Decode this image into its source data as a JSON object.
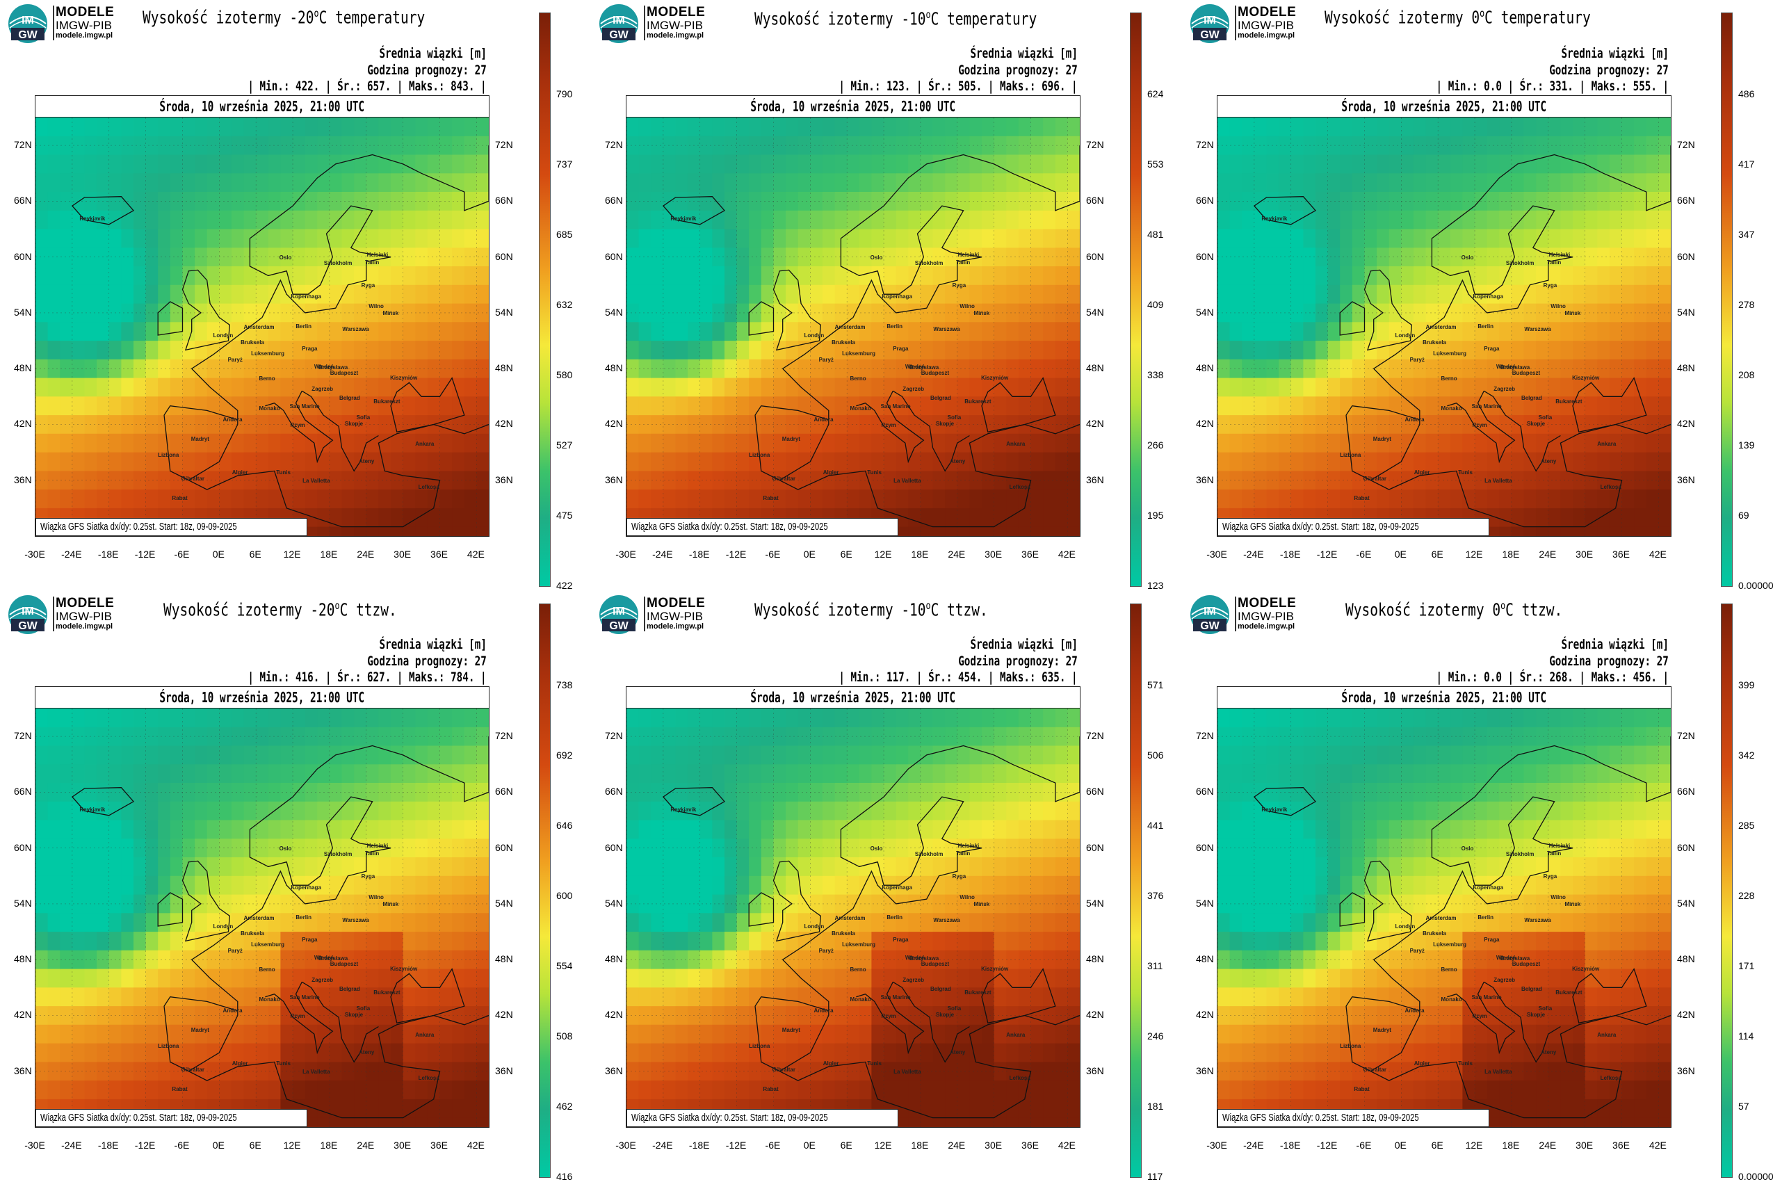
{
  "brand": {
    "line1": "MODELE",
    "line2": "IMGW-PIB",
    "line3": "modele.imgw.pl",
    "logo_text_top": "IM",
    "logo_text_bottom": "GW"
  },
  "common": {
    "date": "Środa, 10 września 2025, 21:00 UTC",
    "avg_label": "Średnia wiązki [m]",
    "forecast_hour": "Godzina prognozy: 27",
    "footnote": "Wiązka GFS Siatka dx/dy: 0.25st. Start: 18z, 09-09-2025",
    "lat_labels": [
      "72N",
      "66N",
      "60N",
      "54N",
      "48N",
      "42N",
      "36N"
    ],
    "lon_labels": [
      "-30E",
      "-24E",
      "-18E",
      "-12E",
      "-6E",
      "0E",
      "6E",
      "12E",
      "18E",
      "24E",
      "30E",
      "36E",
      "42E"
    ],
    "cities": [
      "Oslo",
      "Sztokholm",
      "Helsinki",
      "Tallin",
      "Ryga",
      "Kopenhaga",
      "Wilno",
      "Mińsk",
      "Amsterdam",
      "Berlin",
      "Warszawa",
      "Londyn",
      "Bruksela",
      "Luksemburg",
      "Paryż",
      "Praga",
      "Wiedeń",
      "Bratysława",
      "Budapeszt",
      "Kiszyniów",
      "Berno",
      "Zagrzeb",
      "Belgrad",
      "Bukareszt",
      "Sofia",
      "San Marino",
      "Rzym",
      "Andora",
      "Madryt",
      "Lizbona",
      "Ateny",
      "Ankara",
      "Algier",
      "Tunis",
      "Gibraltar",
      "Rabat",
      "La Valletta",
      "Lefkoşa",
      "Reykjavik",
      "Monako",
      "Skopje"
    ],
    "colors": {
      "low": "#00c9a4",
      "green": "#3cc26a",
      "yellow": "#f5e93a",
      "orange": "#f0a020",
      "red": "#d44a10",
      "dark": "#7a1f08"
    }
  },
  "panels": [
    {
      "title": "Wysokość izotermy -20",
      "title_sup": "o",
      "title_rest": "C temperatury",
      "min": "422.",
      "avg": "657.",
      "max": "843.",
      "stats_text": "| Min.:   422. | Śr.:   657. | Maks.:   843. |",
      "cbar_ticks": [
        "790",
        "737",
        "685",
        "632",
        "580",
        "527",
        "475",
        "422"
      ]
    },
    {
      "title": "Wysokość izotermy -10",
      "title_sup": "o",
      "title_rest": "C temperatury",
      "min": "123.",
      "avg": "505.",
      "max": "696.",
      "stats_text": "| Min.:   123. | Śr.:   505. | Maks.:   696. |",
      "cbar_ticks": [
        "624",
        "553",
        "481",
        "409",
        "338",
        "266",
        "195",
        "123"
      ]
    },
    {
      "title": "Wysokość izotermy 0",
      "title_sup": "o",
      "title_rest": "C temperatury",
      "min": "0.0",
      "avg": "331.",
      "max": "555.",
      "stats_text": "| Min.:    0.0 | Śr.:   331. | Maks.:   555. |",
      "cbar_ticks": [
        "486",
        "417",
        "347",
        "278",
        "208",
        "139",
        "69",
        "0.00000"
      ]
    },
    {
      "title": "Wysokość izotermy -20",
      "title_sup": "o",
      "title_rest": "C ttzw.",
      "min": "416.",
      "avg": "627.",
      "max": "784.",
      "stats_text": "| Min.:   416. | Śr.:   627. | Maks.:   784. |",
      "cbar_ticks": [
        "738",
        "692",
        "646",
        "600",
        "554",
        "508",
        "462",
        "416"
      ]
    },
    {
      "title": "Wysokość izotermy -10",
      "title_sup": "o",
      "title_rest": "C ttzw.",
      "min": "117.",
      "avg": "454.",
      "max": "635.",
      "stats_text": "| Min.:   117. | Śr.:   454. | Maks.:   635. |",
      "cbar_ticks": [
        "571",
        "506",
        "441",
        "376",
        "311",
        "246",
        "181",
        "117"
      ]
    },
    {
      "title": "Wysokość izotermy 0",
      "title_sup": "o",
      "title_rest": "C ttzw.",
      "min": "0.0",
      "avg": "268.",
      "max": "456.",
      "stats_text": "| Min.:    0.0 | Śr.:   268. | Maks.:   456. |",
      "cbar_ticks": [
        "399",
        "342",
        "285",
        "228",
        "171",
        "114",
        "57",
        "0.00000"
      ]
    }
  ]
}
